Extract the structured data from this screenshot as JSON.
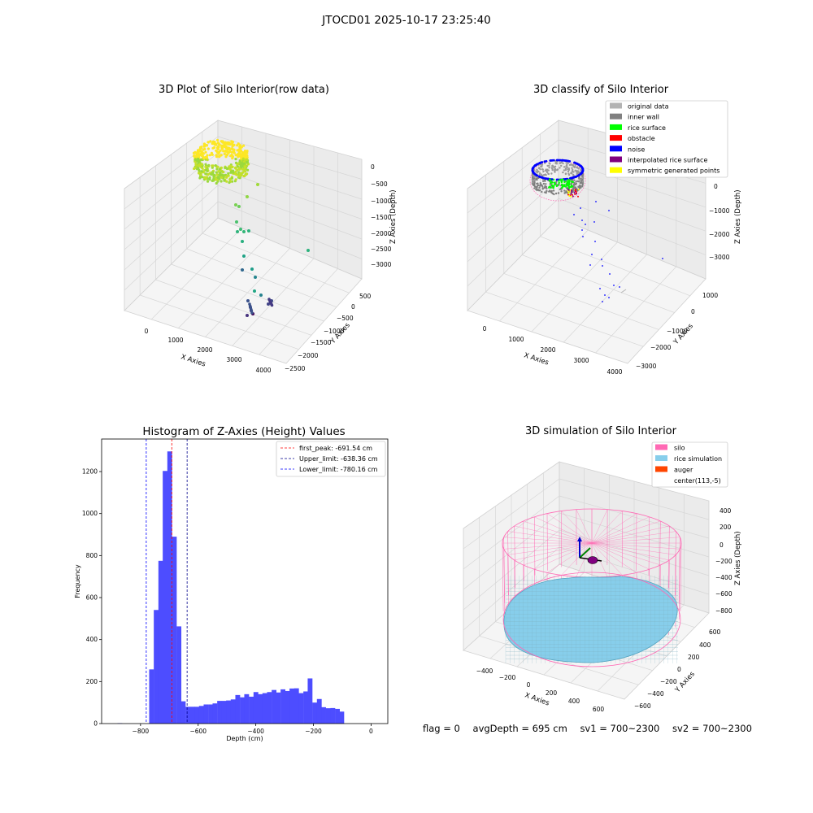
{
  "suptitle": "JTOCD01 2025-10-17 23:25:40",
  "status": {
    "flag": "flag = 0",
    "avg_depth": "avgDepth = 695 cm",
    "sv1": "sv1 = 700~2300",
    "sv2": "sv2 = 700~2300"
  },
  "chart_data": [
    {
      "type": "scatter",
      "title": "3D Plot of Silo Interior(row data)",
      "xlabel": "X Axies",
      "ylabel": "Y Axies",
      "zlabel": "Z Axies (Depth)",
      "x_ticks": [
        "0",
        "1000",
        "2000",
        "3000",
        "4000"
      ],
      "y_ticks": [
        "500",
        "0",
        "−500",
        "−1000",
        "−1500",
        "−2000",
        "−2500"
      ],
      "z_ticks": [
        "0",
        "−500",
        "−1000",
        "−1500",
        "−2000",
        "−2500",
        "−3000"
      ],
      "colormap": "viridis",
      "colors": {
        "high": "#fde725",
        "mid": "#35b779",
        "low": "#440154"
      }
    },
    {
      "type": "scatter",
      "title": "3D classify of Silo Interior",
      "xlabel": "X Axies",
      "ylabel": "Y Axies",
      "zlabel": "Z Axies (Depth)",
      "x_ticks": [
        "0",
        "1000",
        "2000",
        "3000",
        "4000"
      ],
      "y_ticks": [
        "1000",
        "0",
        "−1000",
        "−2000",
        "−3000"
      ],
      "z_ticks": [
        "0",
        "−1000",
        "−2000",
        "−3000"
      ],
      "legend_position": "top-right",
      "legend": [
        {
          "label": "original data",
          "color": "#b3b3b3"
        },
        {
          "label": "inner wall",
          "color": "#808080"
        },
        {
          "label": "rice surface",
          "color": "#00ff00"
        },
        {
          "label": "obstacle",
          "color": "#ff0000"
        },
        {
          "label": "noise",
          "color": "#0000ff"
        },
        {
          "label": "interpolated rice surface",
          "color": "#800080"
        },
        {
          "label": "symmetric generated points",
          "color": "#ffff00"
        }
      ]
    },
    {
      "type": "bar",
      "title": "Histogram of Z-Axies (Height) Values",
      "xlabel": "Depth (cm)",
      "ylabel": "Frequency",
      "xlim": [
        -935,
        58
      ],
      "ylim": [
        0,
        1355
      ],
      "x_ticks": [
        -800,
        -600,
        -400,
        -200,
        0
      ],
      "x_tick_labels": [
        "−800",
        "−600",
        "−400",
        "−200",
        "0"
      ],
      "y_ticks": [
        0,
        200,
        400,
        600,
        800,
        1000,
        1200
      ],
      "bar_color": "#4d4dff",
      "bin_width": 15.7,
      "bin_starts": [
        -880,
        -864,
        -848,
        -833,
        -817,
        -801,
        -785,
        -770,
        -754,
        -738,
        -723,
        -707,
        -691,
        -675,
        -660,
        -644,
        -628,
        -613,
        -597,
        -581,
        -565,
        -550,
        -534,
        -518,
        -503,
        -487,
        -471,
        -455,
        -440,
        -424,
        -408,
        -393,
        -377,
        -361,
        -345,
        -330,
        -314,
        -298,
        -283,
        -267,
        -251,
        -235,
        -220,
        -204,
        -188,
        -173,
        -157,
        -141,
        -125,
        -110,
        -94,
        -78,
        -63,
        -47,
        -31,
        -15
      ],
      "values": [
        2,
        0,
        0,
        0,
        0,
        0,
        0,
        258,
        541,
        775,
        1203,
        1296,
        890,
        463,
        106,
        80,
        80,
        80,
        84,
        91,
        91,
        96,
        108,
        108,
        110,
        115,
        136,
        125,
        140,
        128,
        150,
        140,
        145,
        150,
        160,
        148,
        163,
        155,
        167,
        168,
        145,
        153,
        215,
        100,
        117,
        78,
        73,
        74,
        70,
        57,
        0,
        0,
        0,
        0,
        0,
        0
      ],
      "vlines": [
        {
          "x": -691.54,
          "color": "#ff0000",
          "label": "first_peak: -691.54 cm"
        },
        {
          "x": -638.36,
          "color": "#00008b",
          "label": "Upper_limit: -638.36 cm"
        },
        {
          "x": -780.16,
          "color": "#0000ff",
          "label": "Lower_limit: -780.16 cm"
        }
      ],
      "legend_position": "top-right"
    },
    {
      "type": "surface",
      "title": "3D simulation of Silo Interior",
      "xlabel": "X Axies",
      "ylabel": "Y Axies",
      "zlabel": "Z Axies (Depth)",
      "x_ticks": [
        "−400",
        "−200",
        "0",
        "200",
        "400",
        "600"
      ],
      "y_ticks": [
        "600",
        "400",
        "200",
        "0",
        "−200",
        "−400",
        "−600"
      ],
      "z_ticks": [
        "400",
        "200",
        "0",
        "−200",
        "−400",
        "−600",
        "−800"
      ],
      "legend_position": "top-right",
      "legend": [
        {
          "label": "silo",
          "color": "#ff69b4"
        },
        {
          "label": "rice simulation",
          "color": "#87ceeb"
        },
        {
          "label": "auger",
          "color": "#ff4500"
        },
        {
          "label": "center(113,-5)",
          "color": "#ffffff"
        }
      ]
    }
  ]
}
